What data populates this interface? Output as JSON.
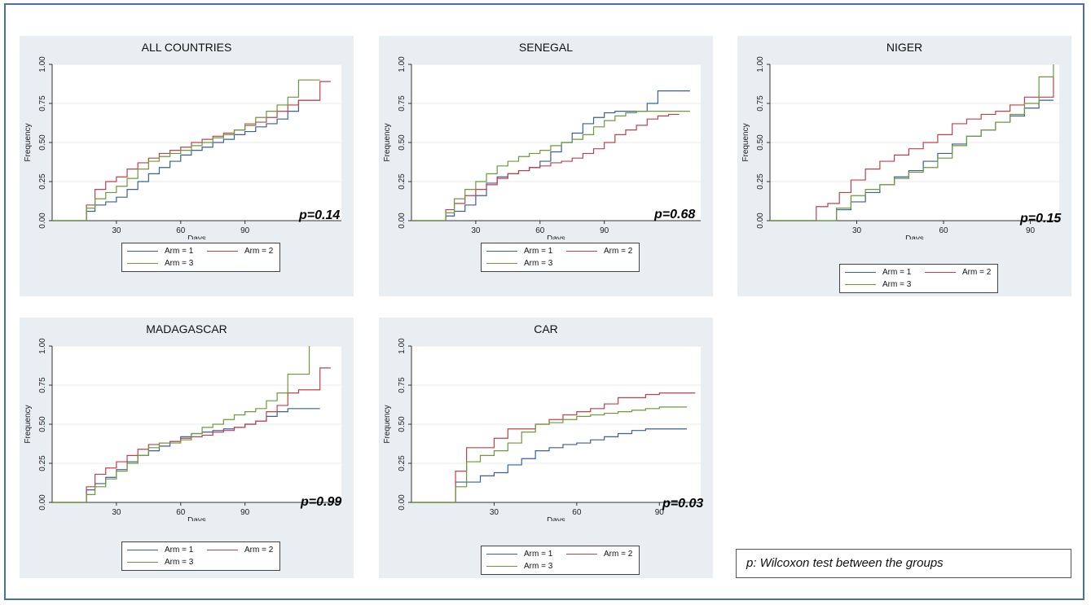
{
  "axis": {
    "xlabel": "Days",
    "ylabel": "Frequency",
    "yticks": [
      "0.00",
      "0.25",
      "0.50",
      "0.75",
      "1.00"
    ]
  },
  "colors": {
    "arm1": "#3a5f9a",
    "arm2": "#c0404a",
    "arm3": "#6b9a3a"
  },
  "legend": [
    "Arm = 1",
    "Arm = 2",
    "Arm = 3"
  ],
  "note": "p: Wilcoxon test between the groups",
  "chart_data": [
    {
      "type": "line",
      "title": "ALL COUNTRIES",
      "p_text": "p=0.14",
      "xlabel": "Days",
      "ylabel": "Frequency",
      "xlim": [
        0,
        135
      ],
      "ylim": [
        0,
        1
      ],
      "xticks": [
        30,
        60,
        90
      ],
      "yticks": [
        0,
        0.25,
        0.5,
        0.75,
        1
      ],
      "series": [
        {
          "name": "Arm = 1",
          "x": [
            0,
            14,
            16,
            20,
            25,
            30,
            35,
            40,
            45,
            50,
            55,
            60,
            65,
            70,
            75,
            80,
            85,
            90,
            95,
            100,
            105,
            110,
            115,
            125
          ],
          "y": [
            0,
            0,
            0.06,
            0.1,
            0.12,
            0.15,
            0.2,
            0.25,
            0.3,
            0.34,
            0.38,
            0.42,
            0.45,
            0.47,
            0.5,
            0.52,
            0.55,
            0.57,
            0.6,
            0.62,
            0.65,
            0.7,
            0.77,
            0.77
          ]
        },
        {
          "name": "Arm = 2",
          "x": [
            0,
            14,
            16,
            20,
            25,
            30,
            35,
            40,
            45,
            50,
            55,
            60,
            65,
            70,
            75,
            80,
            85,
            90,
            95,
            100,
            105,
            110,
            115,
            120,
            125,
            130
          ],
          "y": [
            0,
            0,
            0.1,
            0.2,
            0.25,
            0.28,
            0.33,
            0.37,
            0.4,
            0.43,
            0.45,
            0.47,
            0.5,
            0.52,
            0.54,
            0.56,
            0.58,
            0.61,
            0.63,
            0.66,
            0.7,
            0.74,
            0.77,
            0.77,
            0.89,
            0.89
          ]
        },
        {
          "name": "Arm = 3",
          "x": [
            0,
            14,
            16,
            20,
            25,
            30,
            35,
            40,
            45,
            50,
            55,
            60,
            65,
            70,
            75,
            80,
            85,
            90,
            95,
            100,
            105,
            110,
            115,
            125
          ],
          "y": [
            0,
            0,
            0.08,
            0.14,
            0.18,
            0.22,
            0.27,
            0.33,
            0.38,
            0.41,
            0.43,
            0.45,
            0.48,
            0.5,
            0.53,
            0.55,
            0.58,
            0.62,
            0.66,
            0.7,
            0.74,
            0.79,
            0.9,
            0.9
          ]
        }
      ]
    },
    {
      "type": "line",
      "title": "SENEGAL",
      "p_text": "p=0.68",
      "xlabel": "Days",
      "ylabel": "Frequency",
      "xlim": [
        0,
        135
      ],
      "ylim": [
        0,
        1
      ],
      "xticks": [
        30,
        60,
        90
      ],
      "yticks": [
        0,
        0.25,
        0.5,
        0.75,
        1
      ],
      "series": [
        {
          "name": "Arm = 1",
          "x": [
            0,
            14,
            16,
            20,
            25,
            30,
            35,
            40,
            45,
            50,
            55,
            60,
            65,
            70,
            75,
            80,
            85,
            90,
            95,
            100,
            105,
            110,
            115,
            120,
            130
          ],
          "y": [
            0,
            0,
            0.03,
            0.06,
            0.1,
            0.16,
            0.24,
            0.28,
            0.3,
            0.32,
            0.34,
            0.38,
            0.44,
            0.5,
            0.56,
            0.62,
            0.66,
            0.69,
            0.7,
            0.7,
            0.7,
            0.75,
            0.83,
            0.83,
            0.83
          ]
        },
        {
          "name": "Arm = 2",
          "x": [
            0,
            14,
            16,
            20,
            25,
            30,
            35,
            40,
            45,
            50,
            55,
            60,
            65,
            70,
            75,
            80,
            85,
            90,
            95,
            100,
            105,
            110,
            115,
            120,
            125
          ],
          "y": [
            0,
            0,
            0.07,
            0.11,
            0.16,
            0.2,
            0.23,
            0.27,
            0.3,
            0.32,
            0.34,
            0.35,
            0.37,
            0.38,
            0.4,
            0.43,
            0.46,
            0.5,
            0.55,
            0.58,
            0.61,
            0.65,
            0.67,
            0.68,
            0.68
          ]
        },
        {
          "name": "Arm = 3",
          "x": [
            0,
            14,
            16,
            20,
            25,
            30,
            35,
            40,
            45,
            50,
            55,
            60,
            65,
            70,
            75,
            80,
            85,
            90,
            95,
            100,
            105,
            110,
            115,
            120,
            130
          ],
          "y": [
            0,
            0,
            0.05,
            0.14,
            0.2,
            0.25,
            0.3,
            0.35,
            0.38,
            0.41,
            0.43,
            0.45,
            0.48,
            0.5,
            0.52,
            0.55,
            0.6,
            0.64,
            0.67,
            0.69,
            0.7,
            0.7,
            0.7,
            0.7,
            0.7
          ]
        }
      ]
    },
    {
      "type": "line",
      "title": "NIGER",
      "p_text": "p=0.15",
      "xlabel": "Days",
      "ylabel": "Frequency",
      "xlim": [
        0,
        100
      ],
      "ylim": [
        0,
        1
      ],
      "xticks": [
        30,
        60,
        90
      ],
      "yticks": [
        0,
        0.25,
        0.5,
        0.75,
        1
      ],
      "series": [
        {
          "name": "Arm = 1",
          "x": [
            0,
            20,
            23,
            28,
            33,
            38,
            43,
            48,
            53,
            58,
            63,
            68,
            73,
            78,
            83,
            88,
            93,
            98
          ],
          "y": [
            0,
            0,
            0.07,
            0.12,
            0.18,
            0.23,
            0.28,
            0.32,
            0.38,
            0.43,
            0.49,
            0.54,
            0.58,
            0.63,
            0.67,
            0.72,
            0.77,
            0.77
          ]
        },
        {
          "name": "Arm = 2",
          "x": [
            0,
            14,
            16,
            20,
            24,
            28,
            33,
            38,
            43,
            48,
            53,
            58,
            63,
            68,
            73,
            78,
            83,
            88,
            93,
            98
          ],
          "y": [
            0,
            0,
            0.09,
            0.11,
            0.18,
            0.26,
            0.33,
            0.38,
            0.42,
            0.46,
            0.5,
            0.55,
            0.62,
            0.65,
            0.68,
            0.7,
            0.74,
            0.79,
            0.79,
            0.92
          ]
        },
        {
          "name": "Arm = 3",
          "x": [
            0,
            20,
            23,
            28,
            33,
            38,
            43,
            48,
            53,
            58,
            63,
            68,
            73,
            78,
            83,
            88,
            93,
            98
          ],
          "y": [
            0,
            0,
            0.08,
            0.16,
            0.2,
            0.23,
            0.27,
            0.31,
            0.34,
            0.4,
            0.48,
            0.54,
            0.58,
            0.63,
            0.68,
            0.75,
            0.92,
            1.0
          ]
        }
      ]
    },
    {
      "type": "line",
      "title": "MADAGASCAR",
      "p_text": "p=0.99",
      "xlabel": "Days",
      "ylabel": "Frequency",
      "xlim": [
        0,
        135
      ],
      "ylim": [
        0,
        1
      ],
      "xticks": [
        30,
        60,
        90
      ],
      "yticks": [
        0,
        0.25,
        0.5,
        0.75,
        1
      ],
      "series": [
        {
          "name": "Arm = 1",
          "x": [
            0,
            15,
            16,
            20,
            25,
            30,
            35,
            40,
            45,
            50,
            55,
            60,
            65,
            70,
            75,
            80,
            85,
            90,
            95,
            100,
            105,
            110,
            115,
            125
          ],
          "y": [
            0,
            0,
            0.08,
            0.12,
            0.16,
            0.21,
            0.26,
            0.3,
            0.33,
            0.36,
            0.39,
            0.42,
            0.44,
            0.45,
            0.46,
            0.47,
            0.48,
            0.5,
            0.52,
            0.55,
            0.58,
            0.6,
            0.6,
            0.6
          ]
        },
        {
          "name": "Arm = 2",
          "x": [
            0,
            15,
            16,
            20,
            25,
            30,
            35,
            40,
            45,
            50,
            55,
            60,
            65,
            70,
            75,
            80,
            85,
            90,
            95,
            100,
            105,
            110,
            115,
            120,
            125,
            130
          ],
          "y": [
            0,
            0,
            0.1,
            0.18,
            0.22,
            0.26,
            0.3,
            0.34,
            0.37,
            0.38,
            0.39,
            0.41,
            0.42,
            0.43,
            0.45,
            0.46,
            0.48,
            0.5,
            0.52,
            0.58,
            0.62,
            0.7,
            0.72,
            0.72,
            0.86,
            0.86
          ]
        },
        {
          "name": "Arm = 3",
          "x": [
            0,
            15,
            16,
            20,
            25,
            30,
            35,
            40,
            45,
            50,
            55,
            60,
            65,
            70,
            75,
            80,
            85,
            90,
            95,
            100,
            105,
            110,
            115,
            120
          ],
          "y": [
            0,
            0,
            0.05,
            0.1,
            0.15,
            0.2,
            0.25,
            0.3,
            0.35,
            0.38,
            0.38,
            0.4,
            0.44,
            0.48,
            0.5,
            0.53,
            0.56,
            0.58,
            0.6,
            0.65,
            0.7,
            0.82,
            0.82,
            1.0
          ]
        }
      ]
    },
    {
      "type": "line",
      "title": "CAR",
      "p_text": "p=0.03",
      "xlabel": "Days",
      "ylabel": "Frequency",
      "xlim": [
        0,
        105
      ],
      "ylim": [
        0,
        1
      ],
      "xticks": [
        30,
        60,
        90
      ],
      "yticks": [
        0,
        0.25,
        0.5,
        0.75,
        1
      ],
      "series": [
        {
          "name": "Arm = 1",
          "x": [
            0,
            15,
            16,
            20,
            25,
            30,
            35,
            40,
            45,
            50,
            55,
            60,
            65,
            70,
            75,
            80,
            85,
            90,
            95,
            100
          ],
          "y": [
            0,
            0,
            0.13,
            0.13,
            0.17,
            0.19,
            0.24,
            0.28,
            0.33,
            0.35,
            0.37,
            0.38,
            0.4,
            0.42,
            0.44,
            0.46,
            0.47,
            0.47,
            0.47,
            0.47
          ]
        },
        {
          "name": "Arm = 2",
          "x": [
            0,
            15,
            16,
            20,
            25,
            30,
            35,
            40,
            45,
            50,
            55,
            60,
            65,
            70,
            75,
            80,
            85,
            90,
            95,
            103
          ],
          "y": [
            0,
            0,
            0.2,
            0.35,
            0.35,
            0.41,
            0.47,
            0.47,
            0.5,
            0.53,
            0.56,
            0.58,
            0.6,
            0.63,
            0.67,
            0.67,
            0.69,
            0.7,
            0.7,
            0.7
          ]
        },
        {
          "name": "Arm = 3",
          "x": [
            0,
            15,
            16,
            20,
            25,
            30,
            35,
            40,
            45,
            50,
            55,
            60,
            65,
            70,
            75,
            80,
            85,
            90,
            95,
            100
          ],
          "y": [
            0,
            0,
            0.1,
            0.26,
            0.3,
            0.33,
            0.38,
            0.45,
            0.5,
            0.51,
            0.53,
            0.55,
            0.56,
            0.57,
            0.58,
            0.59,
            0.6,
            0.61,
            0.61,
            0.61
          ]
        }
      ]
    }
  ]
}
